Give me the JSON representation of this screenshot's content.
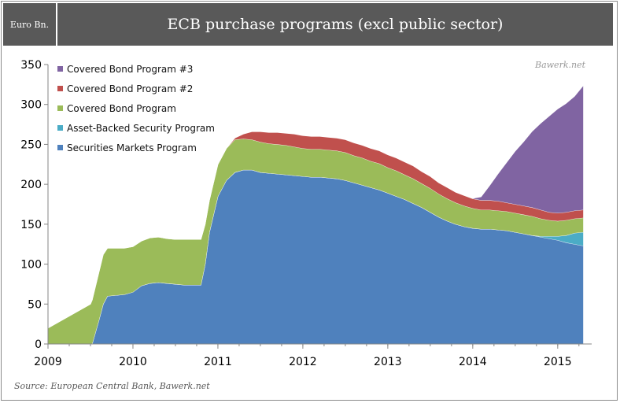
{
  "header": {
    "unit_label": "Euro Bn.",
    "title": "ECB purchase programs  (excl public sector)"
  },
  "watermark": "Bawerk.net",
  "source": "Source: European Central Bank, Bawerk.net",
  "chart_data": {
    "type": "area",
    "stacked": true,
    "title": "ECB purchase programs  (excl public sector)",
    "ylabel": "Euro Bn.",
    "xlim": [
      2009.0,
      2015.4
    ],
    "ylim": [
      0,
      350
    ],
    "yticks": [
      0,
      50,
      100,
      150,
      200,
      250,
      300,
      350
    ],
    "xticks": [
      2009,
      2010,
      2011,
      2012,
      2013,
      2014,
      2015
    ],
    "grid": false,
    "legend_position": "top-left",
    "legend_order": [
      "Covered Bond Program #3",
      "Covered Bond Program #2",
      "Covered Bond Program",
      "Asset-Backed Security Program",
      "Securities Markets Program"
    ],
    "x": [
      2009.0,
      2009.5,
      2009.52,
      2009.6,
      2009.65,
      2009.7,
      2009.8,
      2009.9,
      2010.0,
      2010.1,
      2010.2,
      2010.3,
      2010.4,
      2010.5,
      2010.6,
      2010.7,
      2010.8,
      2010.85,
      2010.9,
      2011.0,
      2011.1,
      2011.2,
      2011.3,
      2011.4,
      2011.5,
      2011.6,
      2011.7,
      2011.8,
      2011.9,
      2012.0,
      2012.1,
      2012.2,
      2012.3,
      2012.4,
      2012.5,
      2012.6,
      2012.7,
      2012.8,
      2012.9,
      2013.0,
      2013.1,
      2013.2,
      2013.3,
      2013.4,
      2013.5,
      2013.6,
      2013.7,
      2013.8,
      2013.9,
      2014.0,
      2014.1,
      2014.2,
      2014.3,
      2014.4,
      2014.5,
      2014.6,
      2014.7,
      2014.8,
      2014.9,
      2015.0,
      2015.1,
      2015.2,
      2015.3
    ],
    "series": [
      {
        "name": "Securities Markets Program",
        "color": "#4f81bd",
        "values": [
          0,
          0,
          0,
          30,
          50,
          60,
          61,
          62,
          65,
          73,
          76,
          77,
          76,
          75,
          74,
          74,
          74,
          100,
          140,
          185,
          205,
          215,
          218,
          218,
          215,
          214,
          213,
          212,
          211,
          210,
          209,
          209,
          208,
          207,
          205,
          202,
          199,
          196,
          193,
          189,
          185,
          181,
          176,
          171,
          165,
          159,
          154,
          150,
          147,
          145,
          144,
          144,
          143,
          142,
          140,
          138,
          136,
          134,
          132,
          130,
          127,
          125,
          123
        ]
      },
      {
        "name": "Asset-Backed Security Program",
        "color": "#4bacc6",
        "values": [
          0,
          0,
          0,
          0,
          0,
          0,
          0,
          0,
          0,
          0,
          0,
          0,
          0,
          0,
          0,
          0,
          0,
          0,
          0,
          0,
          0,
          0,
          0,
          0,
          0,
          0,
          0,
          0,
          0,
          0,
          0,
          0,
          0,
          0,
          0,
          0,
          0,
          0,
          0,
          0,
          0,
          0,
          0,
          0,
          0,
          0,
          0,
          0,
          0,
          0,
          0,
          0,
          0,
          0,
          0,
          0,
          0,
          1,
          3,
          5,
          9,
          14,
          17
        ]
      },
      {
        "name": "Covered Bond Program",
        "color": "#9bbb59",
        "values": [
          20,
          50,
          55,
          60,
          62,
          60,
          59,
          58,
          57,
          56,
          57,
          57,
          56,
          56,
          57,
          57,
          57,
          50,
          40,
          40,
          40,
          41,
          39,
          38,
          38,
          37,
          37,
          37,
          36,
          35,
          35,
          35,
          35,
          35,
          35,
          34,
          34,
          33,
          33,
          32,
          32,
          31,
          31,
          30,
          30,
          29,
          28,
          27,
          26,
          25,
          24,
          24,
          24,
          24,
          24,
          24,
          24,
          22,
          20,
          19,
          19,
          18,
          18
        ]
      },
      {
        "name": "Covered Bond Program #2",
        "color": "#c0504d",
        "values": [
          0,
          0,
          0,
          0,
          0,
          0,
          0,
          0,
          0,
          0,
          0,
          0,
          0,
          0,
          0,
          0,
          0,
          0,
          0,
          0,
          0,
          2,
          6,
          10,
          13,
          14,
          15,
          15,
          16,
          16,
          16,
          16,
          16,
          16,
          16,
          16,
          16,
          16,
          16,
          16,
          16,
          16,
          16,
          15,
          15,
          14,
          14,
          13,
          13,
          12,
          12,
          12,
          12,
          11,
          11,
          11,
          11,
          11,
          10,
          10,
          10,
          10,
          10
        ]
      },
      {
        "name": "Covered Bond Program #3",
        "color": "#8064a2",
        "values": [
          0,
          0,
          0,
          0,
          0,
          0,
          0,
          0,
          0,
          0,
          0,
          0,
          0,
          0,
          0,
          0,
          0,
          0,
          0,
          0,
          0,
          0,
          0,
          0,
          0,
          0,
          0,
          0,
          0,
          0,
          0,
          0,
          0,
          0,
          0,
          0,
          0,
          0,
          0,
          0,
          0,
          0,
          0,
          0,
          0,
          0,
          0,
          0,
          0,
          0,
          4,
          18,
          34,
          50,
          66,
          80,
          95,
          108,
          120,
          130,
          136,
          143,
          155
        ]
      }
    ]
  }
}
